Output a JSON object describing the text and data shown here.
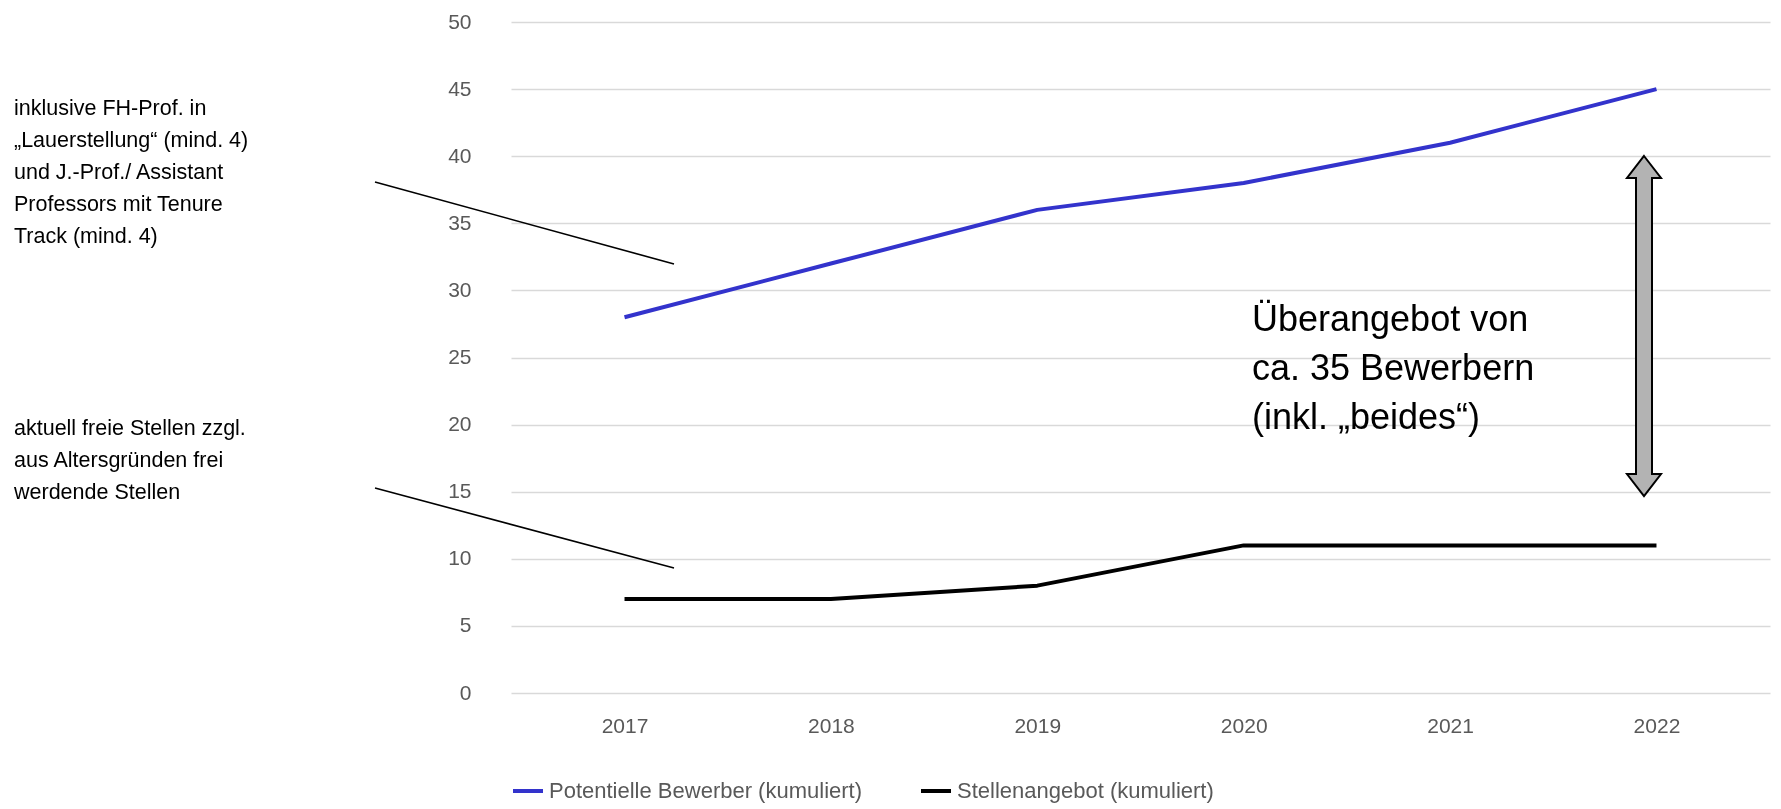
{
  "chart_data": {
    "type": "line",
    "categories": [
      "2017",
      "2018",
      "2019",
      "2020",
      "2021",
      "2022"
    ],
    "series": [
      {
        "name": "Potentielle Bewerber (kumuliert)",
        "color": "#3333cc",
        "values": [
          28,
          32,
          36,
          38,
          41,
          45
        ]
      },
      {
        "name": "Stellenangebot (kumuliert)",
        "color": "#000000",
        "values": [
          7,
          7,
          8,
          11,
          11,
          11
        ]
      }
    ],
    "ylim": [
      0,
      50
    ],
    "yticks": [
      0,
      5,
      10,
      15,
      20,
      25,
      30,
      35,
      40,
      45,
      50
    ],
    "grid": "y",
    "legend": "bottom",
    "marker": "none",
    "line_style": "solid",
    "annotations": [
      "inklusive FH-Prof. in\n„Lauerstellung“ (mind. 4)\nund J.-Prof./ Assistant\nProfessors mit Tenure\nTrack (mind. 4)",
      "aktuell freie Stellen zzgl.\naus Altersgründen frei\nwerdende Stellen",
      "Überangebot von\nca. 35 Bewerbern\n(inkl. „beides“)"
    ]
  }
}
